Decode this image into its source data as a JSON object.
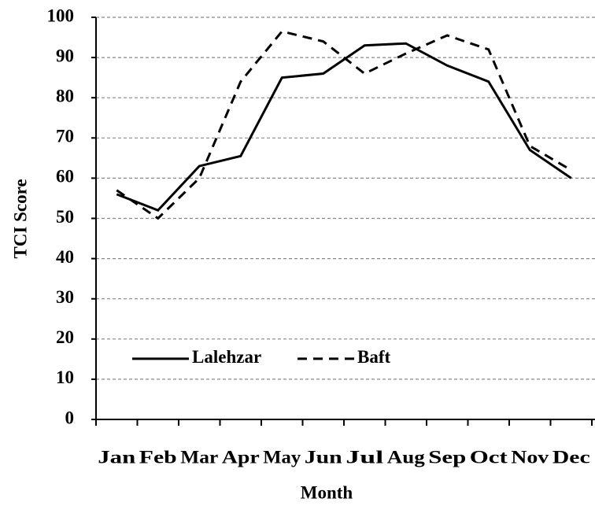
{
  "chart_data": {
    "type": "line",
    "x_label": "Month",
    "y_label": "TCI Score",
    "categories": [
      "Jan",
      "Feb",
      "Mar",
      "Apr",
      "May",
      "Jun",
      "Jul",
      "Aug",
      "Sep",
      "Oct",
      "Nov",
      "Dec"
    ],
    "series": [
      {
        "name": "Lalehzar",
        "color": "#000000",
        "dash": "solid",
        "values": [
          56,
          52,
          63,
          65.5,
          85,
          86,
          93,
          93.5,
          88,
          84,
          67,
          60
        ]
      },
      {
        "name": "Baft",
        "color": "#000000",
        "dash": "dashed",
        "values": [
          57,
          50,
          60,
          84,
          96.5,
          94,
          86,
          91,
          95.5,
          92,
          68,
          62
        ]
      }
    ],
    "ylim": [
      0,
      100
    ],
    "yticks": [
      0,
      10,
      20,
      30,
      40,
      50,
      60,
      70,
      80,
      90,
      100
    ],
    "grid": true,
    "legend": "lower left"
  }
}
